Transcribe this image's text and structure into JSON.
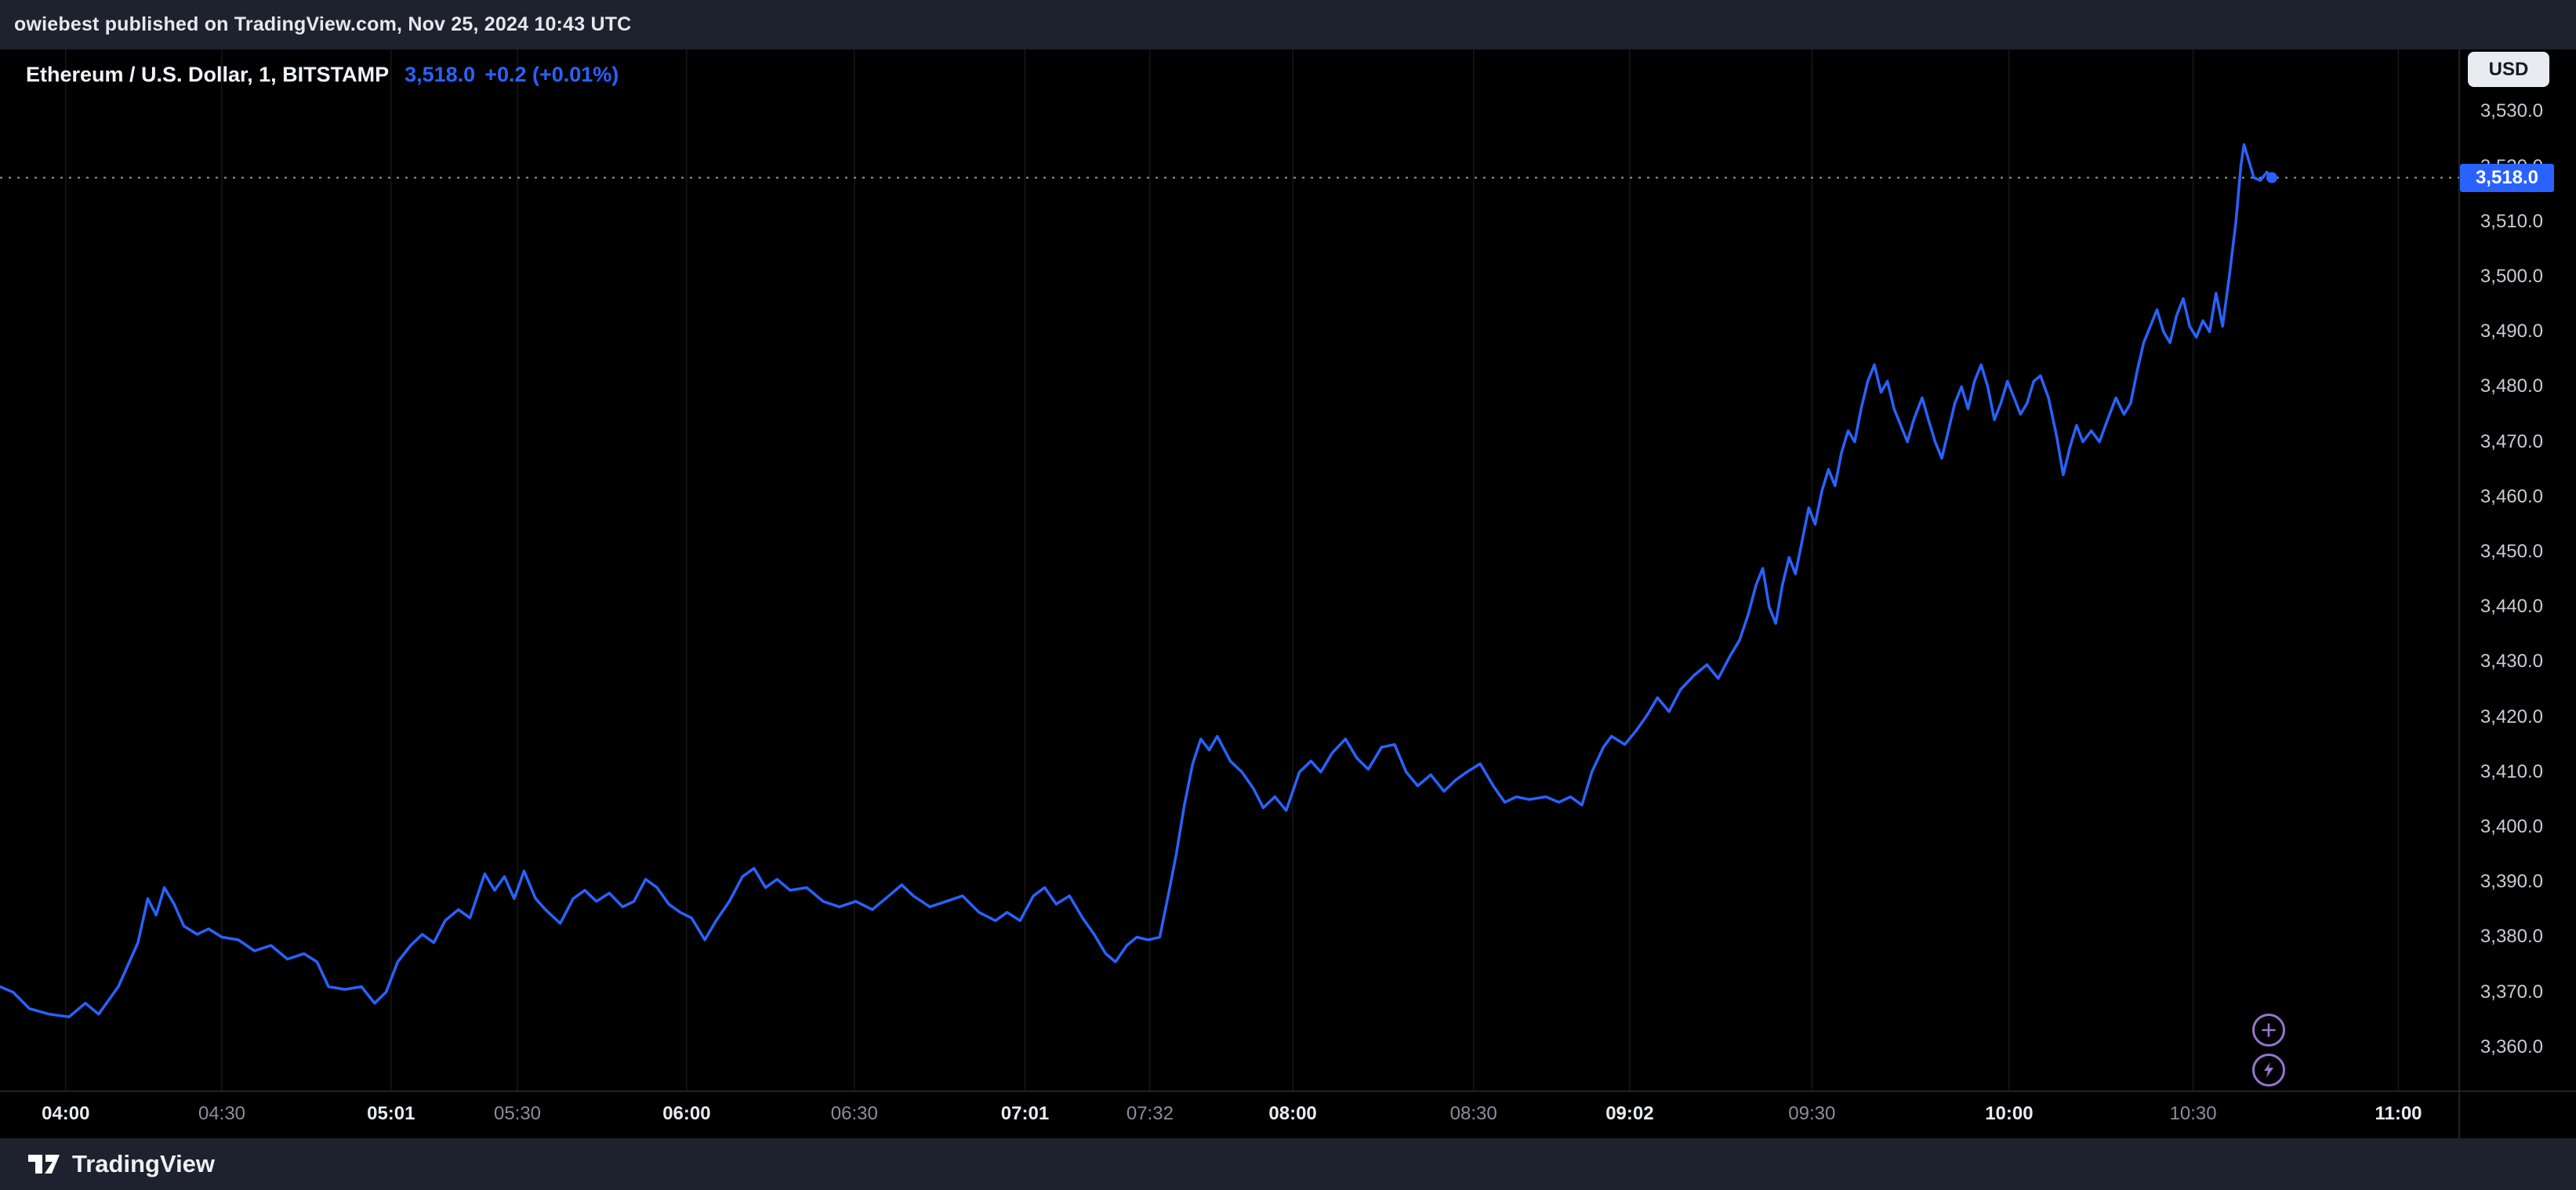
{
  "banner": {
    "text": "owiebest published on TradingView.com, Nov 25, 2024 10:43 UTC"
  },
  "header": {
    "symbol_title": "Ethereum / U.S. Dollar, 1, BITSTAMP",
    "price": "3,518.0",
    "change": "+0.2 (+0.01%)"
  },
  "price_axis": {
    "currency_button": "USD"
  },
  "footer": {
    "brand": "TradingView"
  },
  "chart_data": {
    "type": "line",
    "title": "Ethereum / U.S. Dollar, 1, BITSTAMP",
    "y_unit": "USD",
    "x_unit": "percent_of_plot_width",
    "last_price": 3518.0,
    "last_point": {
      "pos": 92.38,
      "price": 3518,
      "label": "3,518.0"
    },
    "ylim": [
      3352,
      3541.3
    ],
    "grid": "vertical-only",
    "y_ticks": [
      {
        "value": 3530,
        "label": "3,530.0"
      },
      {
        "value": 3520,
        "label": "3,520.0"
      },
      {
        "value": 3510,
        "label": "3,510.0"
      },
      {
        "value": 3500,
        "label": "3,500.0"
      },
      {
        "value": 3490,
        "label": "3,490.0"
      },
      {
        "value": 3480,
        "label": "3,480.0"
      },
      {
        "value": 3470,
        "label": "3,470.0"
      },
      {
        "value": 3460,
        "label": "3,460.0"
      },
      {
        "value": 3450,
        "label": "3,450.0"
      },
      {
        "value": 3440,
        "label": "3,440.0"
      },
      {
        "value": 3430,
        "label": "3,430.0"
      },
      {
        "value": 3420,
        "label": "3,420.0"
      },
      {
        "value": 3410,
        "label": "3,410.0"
      },
      {
        "value": 3400,
        "label": "3,400.0"
      },
      {
        "value": 3390,
        "label": "3,390.0"
      },
      {
        "value": 3380,
        "label": "3,380.0"
      },
      {
        "value": 3370,
        "label": "3,370.0"
      },
      {
        "value": 3360,
        "label": "3,360.0"
      }
    ],
    "x_ticks": [
      {
        "label": "04:00",
        "pos": 2.67,
        "major": true
      },
      {
        "label": "04:30",
        "pos": 9.02,
        "major": false
      },
      {
        "label": "05:01",
        "pos": 15.9,
        "major": true
      },
      {
        "label": "05:30",
        "pos": 21.04,
        "major": false
      },
      {
        "label": "06:00",
        "pos": 27.92,
        "major": true
      },
      {
        "label": "06:30",
        "pos": 34.74,
        "major": false
      },
      {
        "label": "07:01",
        "pos": 41.68,
        "major": true
      },
      {
        "label": "07:32",
        "pos": 46.76,
        "major": false
      },
      {
        "label": "08:00",
        "pos": 52.57,
        "major": true
      },
      {
        "label": "08:30",
        "pos": 59.92,
        "major": false
      },
      {
        "label": "09:02",
        "pos": 66.27,
        "major": true
      },
      {
        "label": "09:30",
        "pos": 73.68,
        "major": false
      },
      {
        "label": "10:00",
        "pos": 81.7,
        "major": true
      },
      {
        "label": "10:30",
        "pos": 89.18,
        "major": false
      },
      {
        "label": "11:00",
        "pos": 97.53,
        "major": true
      }
    ],
    "points": [
      [
        0,
        3371
      ],
      [
        0.53,
        3370
      ],
      [
        1.2,
        3367
      ],
      [
        2,
        3366
      ],
      [
        2.81,
        3365.5
      ],
      [
        3.47,
        3368
      ],
      [
        4.01,
        3366
      ],
      [
        4.81,
        3371
      ],
      [
        5.61,
        3379
      ],
      [
        6.01,
        3387
      ],
      [
        6.35,
        3384
      ],
      [
        6.68,
        3389
      ],
      [
        7.08,
        3386
      ],
      [
        7.48,
        3382
      ],
      [
        8.02,
        3380.5
      ],
      [
        8.48,
        3381.5
      ],
      [
        9.02,
        3380
      ],
      [
        9.69,
        3379.5
      ],
      [
        10.35,
        3377.5
      ],
      [
        11.02,
        3378.5
      ],
      [
        11.69,
        3376
      ],
      [
        12.36,
        3377
      ],
      [
        12.89,
        3375.5
      ],
      [
        13.36,
        3371
      ],
      [
        14.03,
        3370.5
      ],
      [
        14.7,
        3371
      ],
      [
        15.23,
        3368
      ],
      [
        15.7,
        3370
      ],
      [
        16.17,
        3375.5
      ],
      [
        16.7,
        3378.5
      ],
      [
        17.17,
        3380.5
      ],
      [
        17.64,
        3379
      ],
      [
        18.1,
        3383
      ],
      [
        18.64,
        3385
      ],
      [
        19.11,
        3383.5
      ],
      [
        19.71,
        3391.5
      ],
      [
        20.11,
        3388.5
      ],
      [
        20.51,
        3391
      ],
      [
        20.91,
        3387
      ],
      [
        21.31,
        3392
      ],
      [
        21.78,
        3387
      ],
      [
        22.18,
        3385
      ],
      [
        22.78,
        3382.5
      ],
      [
        23.31,
        3387
      ],
      [
        23.78,
        3388.5
      ],
      [
        24.25,
        3386.5
      ],
      [
        24.78,
        3388
      ],
      [
        25.32,
        3385.5
      ],
      [
        25.78,
        3386.5
      ],
      [
        26.25,
        3390.5
      ],
      [
        26.72,
        3389
      ],
      [
        27.19,
        3386
      ],
      [
        27.66,
        3384.5
      ],
      [
        28.12,
        3383.5
      ],
      [
        28.66,
        3379.5
      ],
      [
        29.12,
        3383
      ],
      [
        29.66,
        3386.5
      ],
      [
        30.19,
        3391
      ],
      [
        30.66,
        3392.5
      ],
      [
        31.13,
        3389
      ],
      [
        31.6,
        3390.5
      ],
      [
        32.13,
        3388.5
      ],
      [
        32.8,
        3389
      ],
      [
        33.47,
        3386.5
      ],
      [
        34.13,
        3385.5
      ],
      [
        34.8,
        3386.5
      ],
      [
        35.47,
        3385
      ],
      [
        36.14,
        3387.5
      ],
      [
        36.67,
        3389.5
      ],
      [
        37.14,
        3387.5
      ],
      [
        37.81,
        3385.5
      ],
      [
        38.48,
        3386.5
      ],
      [
        39.14,
        3387.5
      ],
      [
        39.81,
        3384.5
      ],
      [
        40.48,
        3383
      ],
      [
        40.95,
        3384.5
      ],
      [
        41.48,
        3383
      ],
      [
        42.02,
        3387.5
      ],
      [
        42.48,
        3389
      ],
      [
        42.95,
        3386
      ],
      [
        43.49,
        3387.5
      ],
      [
        44.02,
        3383.5
      ],
      [
        44.49,
        3380.5
      ],
      [
        44.96,
        3377
      ],
      [
        45.36,
        3375.5
      ],
      [
        45.82,
        3378.5
      ],
      [
        46.23,
        3380
      ],
      [
        46.69,
        3379.5
      ],
      [
        47.16,
        3380
      ],
      [
        47.5,
        3387.5
      ],
      [
        47.83,
        3395
      ],
      [
        48.16,
        3404
      ],
      [
        48.5,
        3411.5
      ],
      [
        48.83,
        3416
      ],
      [
        49.17,
        3414
      ],
      [
        49.5,
        3416.5
      ],
      [
        50.03,
        3412
      ],
      [
        50.5,
        3410
      ],
      [
        50.97,
        3407
      ],
      [
        51.37,
        3403.5
      ],
      [
        51.84,
        3405.5
      ],
      [
        52.3,
        3403
      ],
      [
        52.84,
        3410
      ],
      [
        53.31,
        3412
      ],
      [
        53.71,
        3410
      ],
      [
        54.18,
        3413.5
      ],
      [
        54.71,
        3416
      ],
      [
        55.18,
        3412.5
      ],
      [
        55.64,
        3410.5
      ],
      [
        56.18,
        3414.5
      ],
      [
        56.71,
        3415
      ],
      [
        57.18,
        3410
      ],
      [
        57.65,
        3407.5
      ],
      [
        58.18,
        3409.5
      ],
      [
        58.72,
        3406.5
      ],
      [
        59.18,
        3408.5
      ],
      [
        59.65,
        3410
      ],
      [
        60.19,
        3411.5
      ],
      [
        60.72,
        3407.5
      ],
      [
        61.19,
        3404.5
      ],
      [
        61.66,
        3405.5
      ],
      [
        62.19,
        3405
      ],
      [
        62.86,
        3405.5
      ],
      [
        63.39,
        3404.5
      ],
      [
        63.86,
        3405.5
      ],
      [
        64.33,
        3404
      ],
      [
        64.73,
        3410
      ],
      [
        65.2,
        3414.5
      ],
      [
        65.53,
        3416.5
      ],
      [
        66.07,
        3415
      ],
      [
        66.53,
        3417.5
      ],
      [
        67,
        3420.5
      ],
      [
        67.4,
        3423.5
      ],
      [
        67.87,
        3421
      ],
      [
        68.34,
        3425
      ],
      [
        68.87,
        3427.5
      ],
      [
        69.41,
        3429.5
      ],
      [
        69.87,
        3427
      ],
      [
        70.34,
        3431
      ],
      [
        70.74,
        3434
      ],
      [
        71.08,
        3438.5
      ],
      [
        71.41,
        3444
      ],
      [
        71.68,
        3447
      ],
      [
        71.94,
        3440
      ],
      [
        72.21,
        3437
      ],
      [
        72.48,
        3444
      ],
      [
        72.75,
        3449
      ],
      [
        73.01,
        3446
      ],
      [
        73.28,
        3452
      ],
      [
        73.55,
        3458
      ],
      [
        73.81,
        3455
      ],
      [
        74.08,
        3461
      ],
      [
        74.35,
        3465
      ],
      [
        74.62,
        3462
      ],
      [
        74.88,
        3468
      ],
      [
        75.15,
        3472
      ],
      [
        75.42,
        3470
      ],
      [
        75.68,
        3476
      ],
      [
        75.95,
        3481
      ],
      [
        76.22,
        3484
      ],
      [
        76.49,
        3479
      ],
      [
        76.75,
        3481
      ],
      [
        77.02,
        3476
      ],
      [
        77.29,
        3473
      ],
      [
        77.56,
        3470
      ],
      [
        77.82,
        3474
      ],
      [
        78.16,
        3478
      ],
      [
        78.42,
        3474
      ],
      [
        78.69,
        3470
      ],
      [
        78.96,
        3467
      ],
      [
        79.23,
        3472
      ],
      [
        79.49,
        3477
      ],
      [
        79.76,
        3480
      ],
      [
        80.03,
        3476
      ],
      [
        80.29,
        3481
      ],
      [
        80.56,
        3484
      ],
      [
        80.83,
        3480
      ],
      [
        81.1,
        3474
      ],
      [
        81.36,
        3477
      ],
      [
        81.63,
        3481
      ],
      [
        81.9,
        3478
      ],
      [
        82.16,
        3475
      ],
      [
        82.43,
        3477
      ],
      [
        82.7,
        3481
      ],
      [
        82.97,
        3482
      ],
      [
        83.3,
        3478
      ],
      [
        83.63,
        3471
      ],
      [
        83.9,
        3464
      ],
      [
        84.17,
        3469
      ],
      [
        84.44,
        3473
      ],
      [
        84.7,
        3470
      ],
      [
        85.04,
        3472
      ],
      [
        85.37,
        3470
      ],
      [
        85.7,
        3474
      ],
      [
        86.04,
        3478
      ],
      [
        86.37,
        3475
      ],
      [
        86.64,
        3477
      ],
      [
        86.91,
        3483
      ],
      [
        87.17,
        3488
      ],
      [
        87.44,
        3491
      ],
      [
        87.71,
        3494
      ],
      [
        87.98,
        3490
      ],
      [
        88.24,
        3488
      ],
      [
        88.51,
        3493
      ],
      [
        88.78,
        3496
      ],
      [
        89.04,
        3491
      ],
      [
        89.31,
        3489
      ],
      [
        89.58,
        3492
      ],
      [
        89.85,
        3490
      ],
      [
        90.11,
        3497
      ],
      [
        90.38,
        3491
      ],
      [
        90.65,
        3500
      ],
      [
        90.92,
        3510
      ],
      [
        91.12,
        3520
      ],
      [
        91.25,
        3524
      ],
      [
        91.45,
        3521
      ],
      [
        91.65,
        3518
      ],
      [
        91.92,
        3517.5
      ],
      [
        92.18,
        3519
      ],
      [
        92.38,
        3518
      ]
    ],
    "colors": {
      "line": "#2962ff",
      "price_label_bg": "#2962ff",
      "price_label_text": "#ffffff",
      "grid": "rgba(255,255,255,0.09)",
      "axis_border": "#2a2e39",
      "dashed_price_line": "#9598a1",
      "accent_purple": "#9575cd"
    }
  }
}
